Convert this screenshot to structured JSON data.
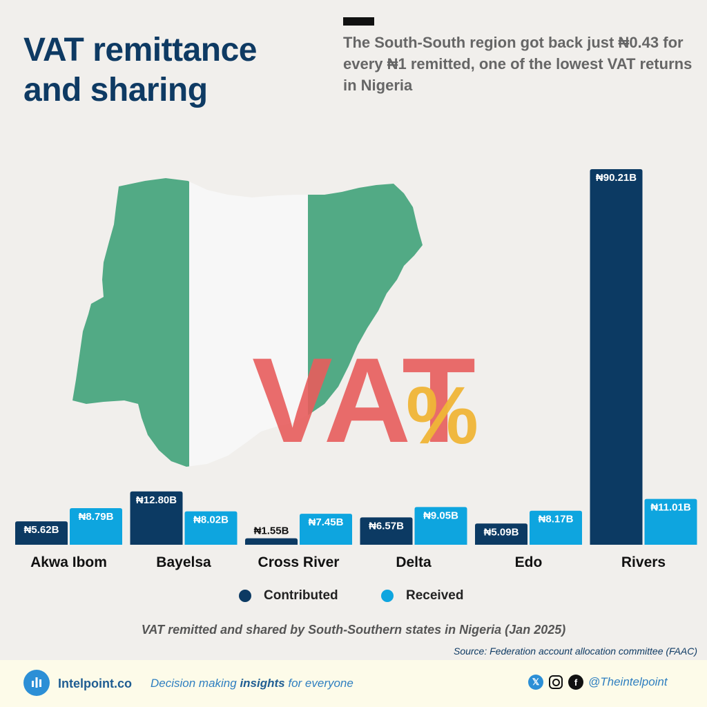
{
  "header": {
    "title": "VAT remittance and sharing",
    "subtitle": "The South-South region got back just ₦0.43 for every ₦1 remitted, one of the lowest VAT returns in Nigeria"
  },
  "chart_data": {
    "type": "bar",
    "categories": [
      "Akwa Ibom",
      "Bayelsa",
      "Cross River",
      "Delta",
      "Edo",
      "Rivers"
    ],
    "series": [
      {
        "name": "Contributed",
        "values": [
          5.62,
          12.8,
          1.55,
          6.57,
          5.09,
          90.21
        ],
        "labels": [
          "₦5.62B",
          "₦12.80B",
          "₦1.55B",
          "₦6.57B",
          "₦5.09B",
          "₦90.21B"
        ],
        "color": "#0c3a63"
      },
      {
        "name": "Received",
        "values": [
          8.79,
          8.02,
          7.45,
          9.05,
          8.17,
          11.01
        ],
        "labels": [
          "₦8.79B",
          "₦8.02B",
          "₦7.45B",
          "₦9.05B",
          "₦8.17B",
          "₦11.01B"
        ],
        "color": "#0ea5df"
      }
    ],
    "title": "",
    "xlabel": "",
    "ylabel": "",
    "ylim": [
      0,
      90.21
    ],
    "grid": false,
    "legend": "bottom-center"
  },
  "illustration": {
    "flag_colors": {
      "green": "#52aa85",
      "white": "#f7f7f7"
    },
    "vat_text": "VAT",
    "vat_color": "#e85d5d",
    "percent_glyph": "%",
    "percent_color": "#f0b637"
  },
  "caption": "VAT remitted and shared by South-Southern states in Nigeria (Jan 2025)",
  "source": "Source: Federation account allocation committee (FAAC)",
  "footer": {
    "brand": "Intelpoint.co",
    "tagline_pre": "Decision making ",
    "tagline_bold": "insights",
    "tagline_post": " for everyone",
    "handle": "@Theintelpoint",
    "icons": [
      "x-icon",
      "instagram-icon",
      "facebook-icon"
    ]
  }
}
